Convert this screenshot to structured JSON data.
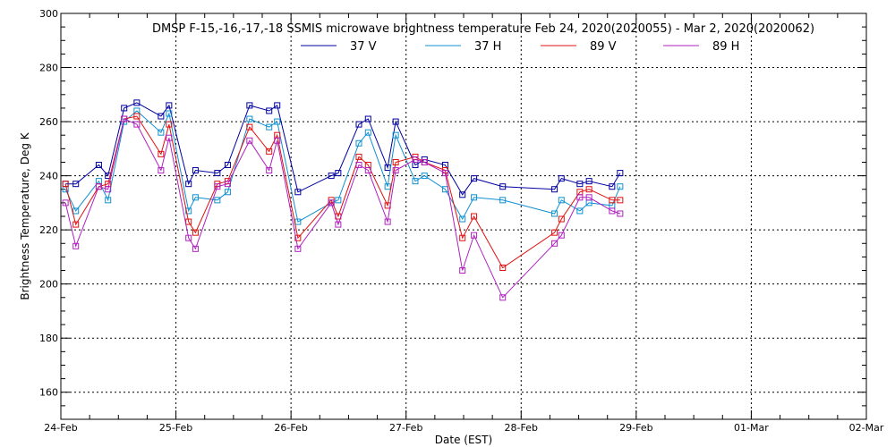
{
  "chart_data": {
    "type": "line",
    "title": "DMSP F-15,-16,-17,-18 SSMIS microwave brightness temperature Feb 24, 2020(2020055) - Mar  2, 2020(2020062)",
    "xlabel": "Date (EST)",
    "ylabel": "Brightness Temperature, Deg K",
    "xlim": [
      0,
      7
    ],
    "ylim": [
      150,
      300
    ],
    "x_ticks": [
      {
        "label": "24-Feb",
        "value": 0
      },
      {
        "label": "25-Feb",
        "value": 1
      },
      {
        "label": "26-Feb",
        "value": 2
      },
      {
        "label": "27-Feb",
        "value": 3
      },
      {
        "label": "28-Feb",
        "value": 4
      },
      {
        "label": "29-Feb",
        "value": 5
      },
      {
        "label": "01-Mar",
        "value": 6
      },
      {
        "label": "02-Mar",
        "value": 7
      }
    ],
    "y_ticks": [
      160,
      180,
      200,
      220,
      240,
      260,
      280,
      300
    ],
    "grid": true,
    "legend": "top",
    "series": [
      {
        "name": "37 V",
        "color": "#0000a0",
        "points": [
          [
            0.04,
            237
          ],
          [
            0.13,
            237
          ],
          [
            0.33,
            244
          ],
          [
            0.41,
            240
          ],
          [
            0.55,
            265
          ],
          [
            0.66,
            267
          ],
          [
            0.87,
            262
          ],
          [
            0.94,
            266
          ],
          [
            1.11,
            237
          ],
          [
            1.17,
            242
          ],
          [
            1.36,
            241
          ],
          [
            1.45,
            244
          ],
          [
            1.64,
            266
          ],
          [
            1.81,
            264
          ],
          [
            1.88,
            266
          ],
          [
            2.06,
            234
          ],
          [
            2.35,
            240
          ],
          [
            2.41,
            241
          ],
          [
            2.59,
            259
          ],
          [
            2.67,
            261
          ],
          [
            2.84,
            243
          ],
          [
            2.91,
            260
          ],
          [
            3.08,
            244
          ],
          [
            3.16,
            246
          ],
          [
            3.34,
            244
          ],
          [
            3.49,
            233
          ],
          [
            3.59,
            239
          ],
          [
            3.84,
            236
          ],
          [
            4.29,
            235
          ],
          [
            4.35,
            239
          ],
          [
            4.51,
            237
          ],
          [
            4.59,
            238
          ],
          [
            4.79,
            236
          ],
          [
            4.86,
            241
          ]
        ]
      },
      {
        "name": "37 H",
        "color": "#1090d0",
        "points": [
          [
            0.04,
            235
          ],
          [
            0.13,
            227
          ],
          [
            0.33,
            238
          ],
          [
            0.41,
            231
          ],
          [
            0.55,
            260
          ],
          [
            0.66,
            264
          ],
          [
            0.87,
            256
          ],
          [
            0.94,
            263
          ],
          [
            1.11,
            227
          ],
          [
            1.17,
            232
          ],
          [
            1.36,
            231
          ],
          [
            1.45,
            234
          ],
          [
            1.64,
            261
          ],
          [
            1.81,
            258
          ],
          [
            1.88,
            260
          ],
          [
            2.06,
            223
          ],
          [
            2.35,
            230
          ],
          [
            2.41,
            231
          ],
          [
            2.59,
            252
          ],
          [
            2.67,
            256
          ],
          [
            2.84,
            236
          ],
          [
            2.91,
            255
          ],
          [
            3.08,
            238
          ],
          [
            3.16,
            240
          ],
          [
            3.34,
            235
          ],
          [
            3.49,
            224
          ],
          [
            3.59,
            232
          ],
          [
            3.84,
            231
          ],
          [
            4.29,
            226
          ],
          [
            4.35,
            231
          ],
          [
            4.51,
            227
          ],
          [
            4.59,
            230
          ],
          [
            4.79,
            229
          ],
          [
            4.86,
            236
          ]
        ]
      },
      {
        "name": "89 V",
        "color": "#e01010",
        "points": [
          [
            0.04,
            237
          ],
          [
            0.13,
            222
          ],
          [
            0.33,
            236
          ],
          [
            0.41,
            237
          ],
          [
            0.55,
            261
          ],
          [
            0.66,
            262
          ],
          [
            0.87,
            248
          ],
          [
            0.94,
            259
          ],
          [
            1.11,
            223
          ],
          [
            1.17,
            219
          ],
          [
            1.36,
            237
          ],
          [
            1.45,
            238
          ],
          [
            1.64,
            258
          ],
          [
            1.81,
            249
          ],
          [
            1.88,
            255
          ],
          [
            2.06,
            217
          ],
          [
            2.35,
            231
          ],
          [
            2.41,
            225
          ],
          [
            2.59,
            247
          ],
          [
            2.67,
            244
          ],
          [
            2.84,
            229
          ],
          [
            2.91,
            245
          ],
          [
            3.08,
            247
          ],
          [
            3.16,
            245
          ],
          [
            3.34,
            242
          ],
          [
            3.49,
            217
          ],
          [
            3.59,
            225
          ],
          [
            3.84,
            206
          ],
          [
            4.29,
            219
          ],
          [
            4.35,
            224
          ],
          [
            4.51,
            234
          ],
          [
            4.59,
            235
          ],
          [
            4.79,
            231
          ],
          [
            4.86,
            231
          ]
        ]
      },
      {
        "name": "89 H",
        "color": "#b020c0",
        "points": [
          [
            0.04,
            230
          ],
          [
            0.13,
            214
          ],
          [
            0.33,
            236
          ],
          [
            0.41,
            235
          ],
          [
            0.55,
            261
          ],
          [
            0.66,
            259
          ],
          [
            0.87,
            242
          ],
          [
            0.94,
            254
          ],
          [
            1.11,
            217
          ],
          [
            1.17,
            213
          ],
          [
            1.36,
            236
          ],
          [
            1.45,
            237
          ],
          [
            1.64,
            253
          ],
          [
            1.81,
            242
          ],
          [
            1.88,
            253
          ],
          [
            2.06,
            213
          ],
          [
            2.35,
            230
          ],
          [
            2.41,
            222
          ],
          [
            2.59,
            244
          ],
          [
            2.67,
            242
          ],
          [
            2.84,
            223
          ],
          [
            2.91,
            242
          ],
          [
            3.08,
            246
          ],
          [
            3.16,
            245
          ],
          [
            3.34,
            241
          ],
          [
            3.49,
            205
          ],
          [
            3.59,
            218
          ],
          [
            3.84,
            195
          ],
          [
            4.29,
            215
          ],
          [
            4.35,
            218
          ],
          [
            4.51,
            232
          ],
          [
            4.59,
            232
          ],
          [
            4.79,
            227
          ],
          [
            4.86,
            226
          ]
        ]
      }
    ]
  }
}
